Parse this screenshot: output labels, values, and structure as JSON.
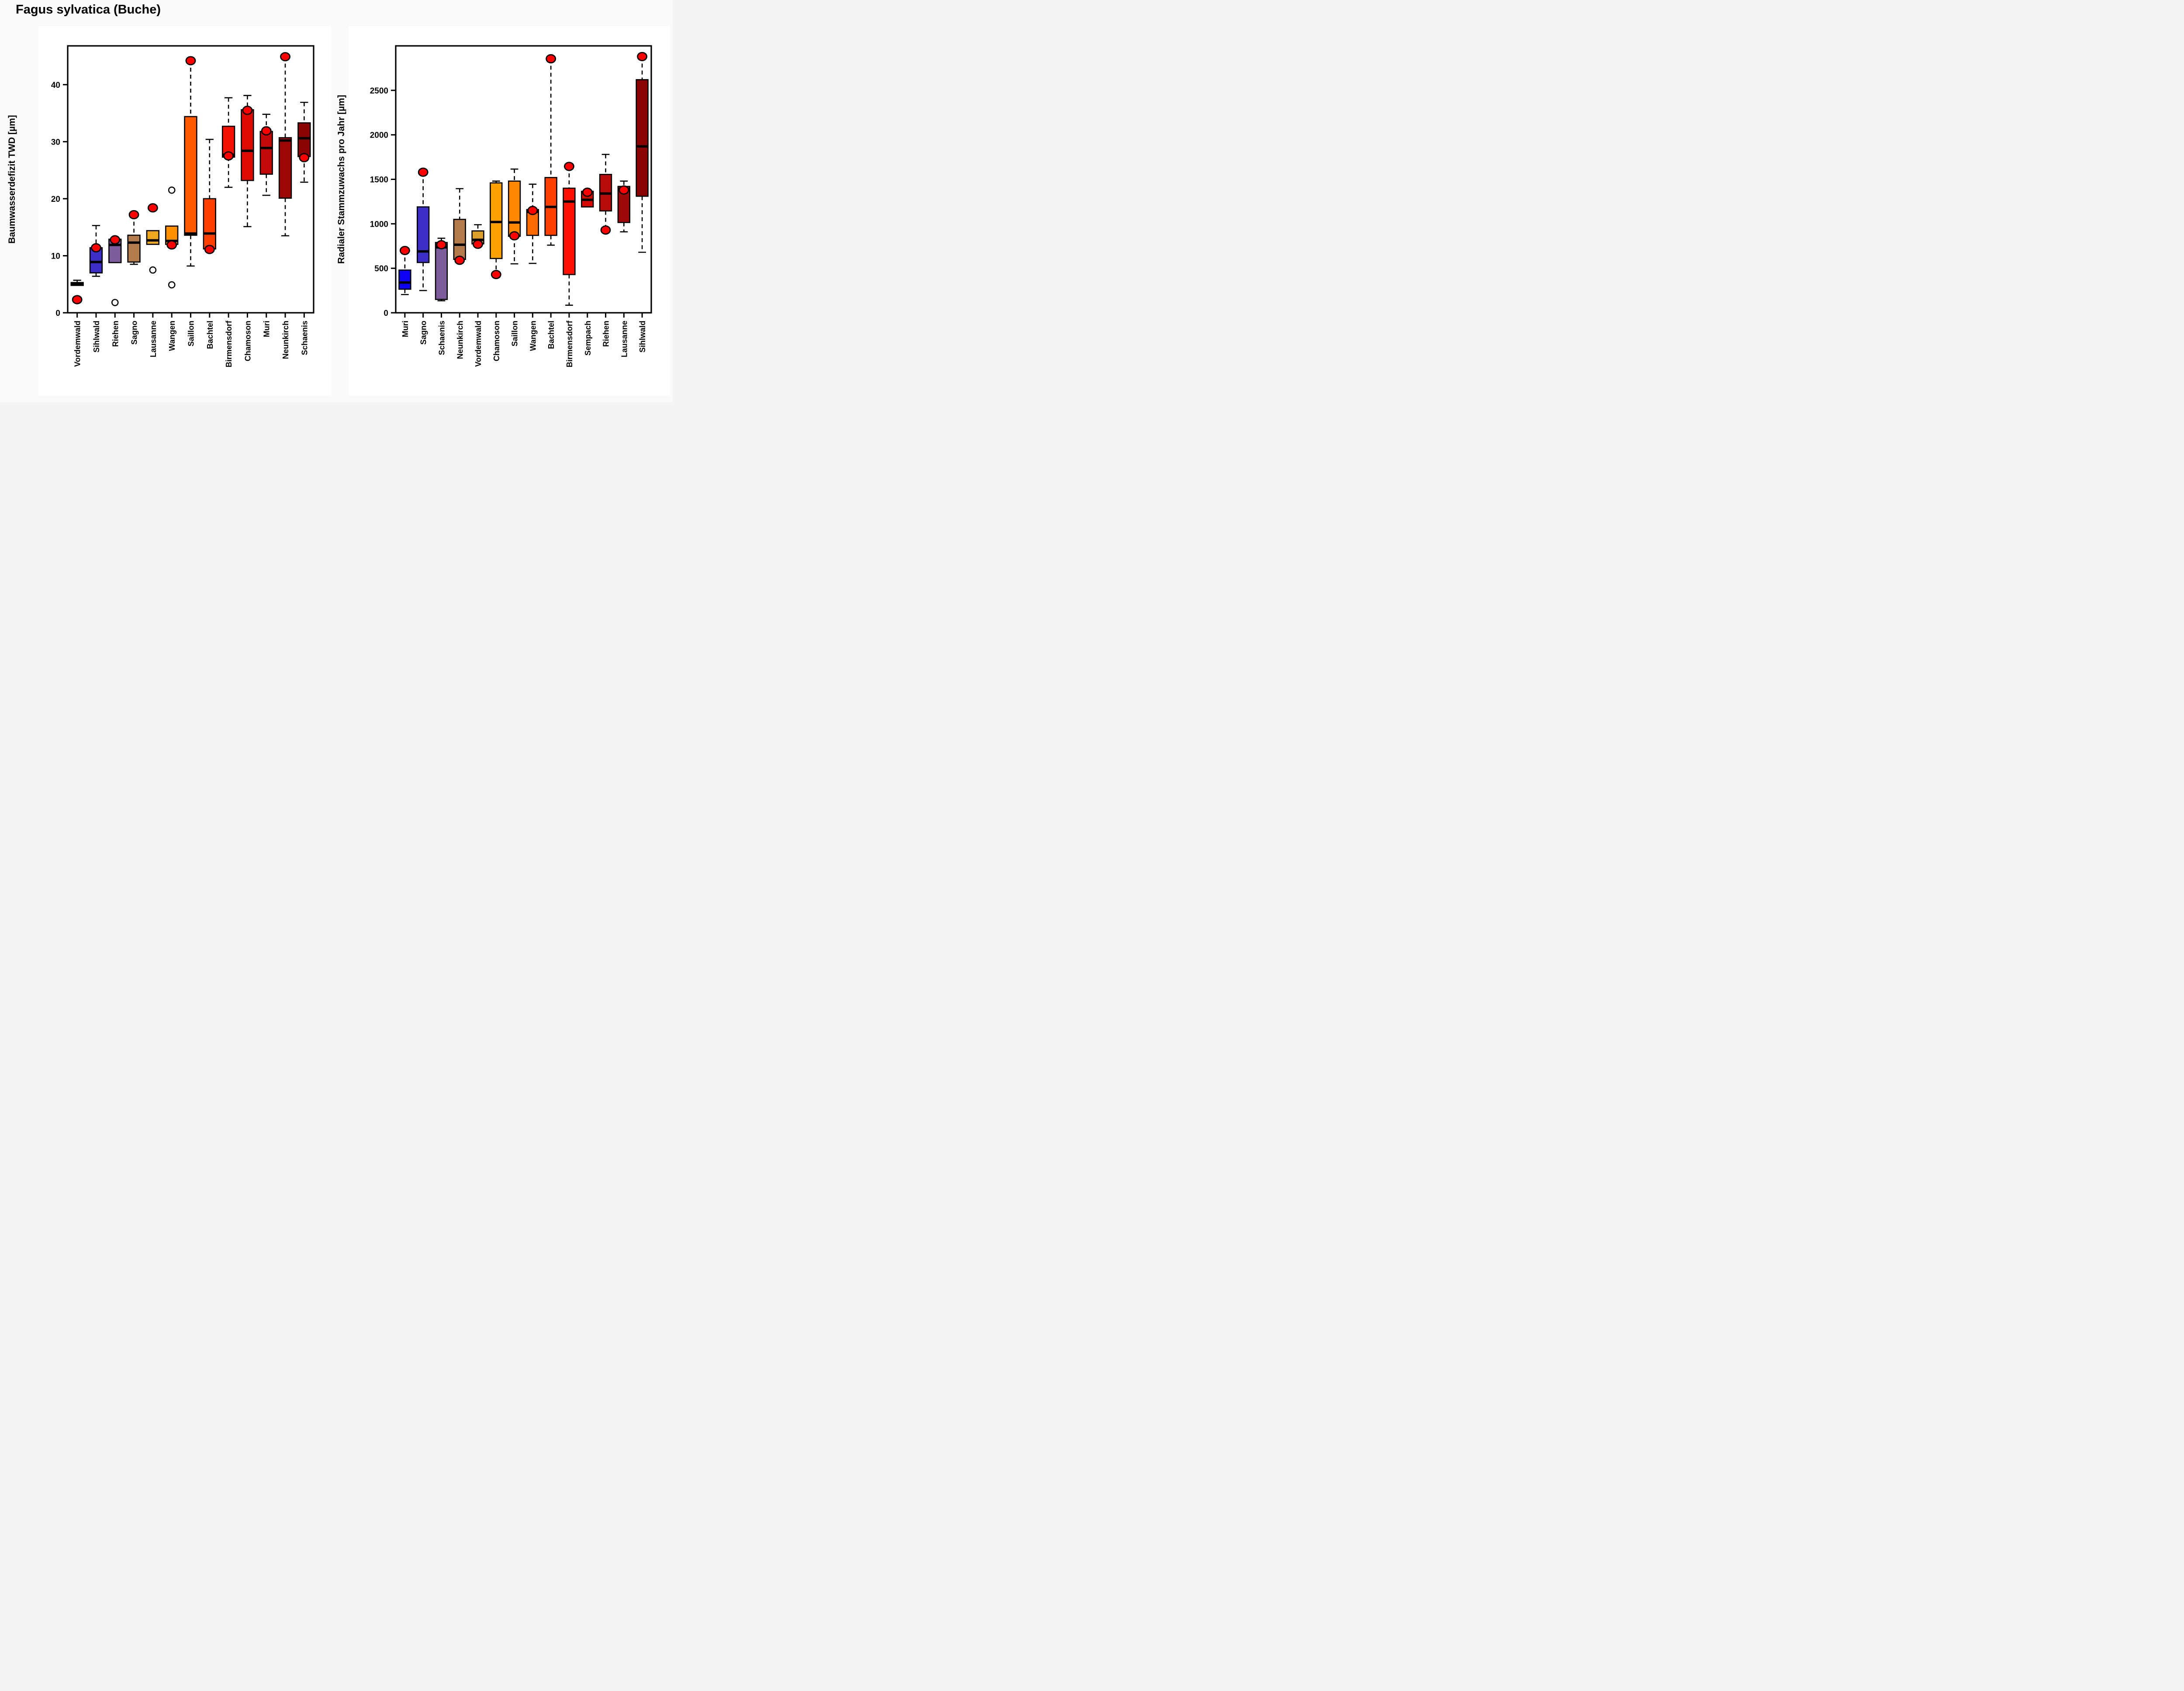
{
  "title": "Fagus sylvatica (Buche)",
  "colors": {
    "background": "#fafafa",
    "panel": "#ffffff",
    "stroke": "#000000",
    "dot_fill": "#ff0000",
    "outlier_fill": "#ffffff"
  },
  "chart_data": [
    {
      "type": "boxplot",
      "panel": "left",
      "ylabel": "Baumwasserdefizit TWD [µm]",
      "ylim": [
        0,
        46.8
      ],
      "yticks": [
        0,
        10,
        20,
        30,
        40
      ],
      "grid": false,
      "legend": "none",
      "categories": [
        "Vordemwald",
        "Sihlwald",
        "Riehen",
        "Sagno",
        "Lausanne",
        "Wangen",
        "Saillon",
        "Bachtel",
        "Birmensdorf",
        "Chamoson",
        "Muri",
        "Neunkirch",
        "Schaenis"
      ],
      "boxes": [
        {
          "site": "Vordemwald",
          "color": "#0000ff",
          "whisker_low": 4.8,
          "q1": 4.8,
          "median": 5.0,
          "q3": 5.3,
          "whisker_high": 5.7,
          "outliers": [],
          "dot": 2.3
        },
        {
          "site": "Sihlwald",
          "color": "#3b2fc7",
          "whisker_low": 6.4,
          "q1": 7.0,
          "median": 8.9,
          "q3": 11.4,
          "whisker_high": 15.3,
          "outliers": [],
          "dot": 11.4
        },
        {
          "site": "Riehen",
          "color": "#7d5c9b",
          "whisker_low": 8.8,
          "q1": 8.8,
          "median": 11.9,
          "q3": 12.9,
          "whisker_high": 12.9,
          "outliers": [
            1.8
          ],
          "dot": 12.8
        },
        {
          "site": "Sagno",
          "color": "#b47b4b",
          "whisker_low": 8.5,
          "q1": 8.9,
          "median": 12.3,
          "q3": 13.6,
          "whisker_high": 17.2,
          "outliers": [],
          "dot": 17.2
        },
        {
          "site": "Lausanne",
          "color": "#efa71e",
          "whisker_low": 12.0,
          "q1": 12.0,
          "median": 12.7,
          "q3": 14.4,
          "whisker_high": 14.4,
          "outliers": [
            7.5
          ],
          "dot": 18.4
        },
        {
          "site": "Wangen",
          "color": "#ff9100",
          "whisker_low": 12.0,
          "q1": 12.0,
          "median": 12.6,
          "q3": 15.2,
          "whisker_high": 15.2,
          "outliers": [
            21.5,
            4.9
          ],
          "dot": 11.9
        },
        {
          "site": "Saillon",
          "color": "#ff5a00",
          "whisker_low": 8.2,
          "q1": 13.6,
          "median": 13.9,
          "q3": 34.4,
          "whisker_high": 44.2,
          "outliers": [],
          "dot": 44.2
        },
        {
          "site": "Bachtel",
          "color": "#ff4000",
          "whisker_low": 11.2,
          "q1": 11.2,
          "median": 13.9,
          "q3": 20.0,
          "whisker_high": 30.4,
          "outliers": [],
          "dot": 11.1
        },
        {
          "site": "Birmensdorf",
          "color": "#f21000",
          "whisker_low": 22.0,
          "q1": 27.3,
          "median": 27.7,
          "q3": 32.7,
          "whisker_high": 37.7,
          "outliers": [],
          "dot": 27.5
        },
        {
          "site": "Chamoson",
          "color": "#dd0a00",
          "whisker_low": 15.1,
          "q1": 23.2,
          "median": 28.4,
          "q3": 35.6,
          "whisker_high": 38.1,
          "outliers": [],
          "dot": 35.5
        },
        {
          "site": "Muri",
          "color": "#c20808",
          "whisker_low": 20.6,
          "q1": 24.3,
          "median": 28.9,
          "q3": 31.8,
          "whisker_high": 34.8,
          "outliers": [],
          "dot": 31.9
        },
        {
          "site": "Neunkirch",
          "color": "#9e0606",
          "whisker_low": 13.5,
          "q1": 20.1,
          "median": 30.2,
          "q3": 30.7,
          "whisker_high": 44.9,
          "outliers": [],
          "dot": 44.9
        },
        {
          "site": "Schaenis",
          "color": "#8b0404",
          "whisker_low": 22.9,
          "q1": 27.4,
          "median": 30.6,
          "q3": 33.3,
          "whisker_high": 36.9,
          "outliers": [],
          "dot": 27.2
        }
      ]
    },
    {
      "type": "boxplot",
      "panel": "right",
      "ylabel": "Radialer Stammzuwachs pro Jahr [µm]",
      "ylim": [
        0,
        3000
      ],
      "yticks": [
        0,
        500,
        1000,
        1500,
        2000,
        2500
      ],
      "grid": false,
      "legend": "none",
      "categories": [
        "Muri",
        "Sagno",
        "Schaenis",
        "Neunkirch",
        "Vordemwald",
        "Chamoson",
        "Saillon",
        "Wangen",
        "Bachtel",
        "Birmensdorf",
        "Sempach",
        "Riehen",
        "Lausanne",
        "Sihlwald"
      ],
      "boxes": [
        {
          "site": "Muri",
          "color": "#0d00f5",
          "whisker_low": 205,
          "q1": 265,
          "median": 340,
          "q3": 480,
          "whisker_high": 700,
          "outliers": [],
          "dot": 700
        },
        {
          "site": "Sagno",
          "color": "#3b2fc7",
          "whisker_low": 250,
          "q1": 565,
          "median": 690,
          "q3": 1190,
          "whisker_high": 1580,
          "outliers": [],
          "dot": 1580
        },
        {
          "site": "Schaenis",
          "color": "#7d5c9b",
          "whisker_low": 135,
          "q1": 150,
          "median": 735,
          "q3": 790,
          "whisker_high": 838,
          "outliers": [],
          "dot": 765
        },
        {
          "site": "Neunkirch",
          "color": "#b47b4b",
          "whisker_low": 600,
          "q1": 600,
          "median": 765,
          "q3": 1050,
          "whisker_high": 1395,
          "outliers": [],
          "dot": 590
        },
        {
          "site": "Vordemwald",
          "color": "#dca02a",
          "whisker_low": 775,
          "q1": 775,
          "median": 820,
          "q3": 920,
          "whisker_high": 990,
          "outliers": [],
          "dot": 770
        },
        {
          "site": "Chamoson",
          "color": "#ffa200",
          "whisker_low": 430,
          "q1": 610,
          "median": 1020,
          "q3": 1460,
          "whisker_high": 1480,
          "outliers": [],
          "dot": 430
        },
        {
          "site": "Saillon",
          "color": "#ff8800",
          "whisker_low": 550,
          "q1": 860,
          "median": 1015,
          "q3": 1480,
          "whisker_high": 1615,
          "outliers": [],
          "dot": 865
        },
        {
          "site": "Wangen",
          "color": "#ff6a00",
          "whisker_low": 555,
          "q1": 870,
          "median": 1135,
          "q3": 1160,
          "whisker_high": 1445,
          "outliers": [],
          "dot": 1150
        },
        {
          "site": "Bachtel",
          "color": "#ff4000",
          "whisker_low": 760,
          "q1": 870,
          "median": 1190,
          "q3": 1520,
          "whisker_high": 2855,
          "outliers": [],
          "dot": 2855
        },
        {
          "site": "Birmensdorf",
          "color": "#ff0f00",
          "whisker_low": 85,
          "q1": 430,
          "median": 1250,
          "q3": 1400,
          "whisker_high": 1645,
          "outliers": [],
          "dot": 1645
        },
        {
          "site": "Sempach",
          "color": "#d40b00",
          "whisker_low": 1190,
          "q1": 1190,
          "median": 1270,
          "q3": 1365,
          "whisker_high": 1365,
          "outliers": [],
          "dot": 1355
        },
        {
          "site": "Riehen",
          "color": "#b80b0b",
          "whisker_low": 930,
          "q1": 1145,
          "median": 1340,
          "q3": 1555,
          "whisker_high": 1780,
          "outliers": [],
          "dot": 930
        },
        {
          "site": "Lausanne",
          "color": "#9e0909",
          "whisker_low": 910,
          "q1": 1015,
          "median": 1390,
          "q3": 1420,
          "whisker_high": 1480,
          "outliers": [],
          "dot": 1380
        },
        {
          "site": "Sihlwald",
          "color": "#8b0404",
          "whisker_low": 680,
          "q1": 1310,
          "median": 1870,
          "q3": 2620,
          "whisker_high": 2880,
          "outliers": [],
          "dot": 2880
        }
      ]
    }
  ]
}
